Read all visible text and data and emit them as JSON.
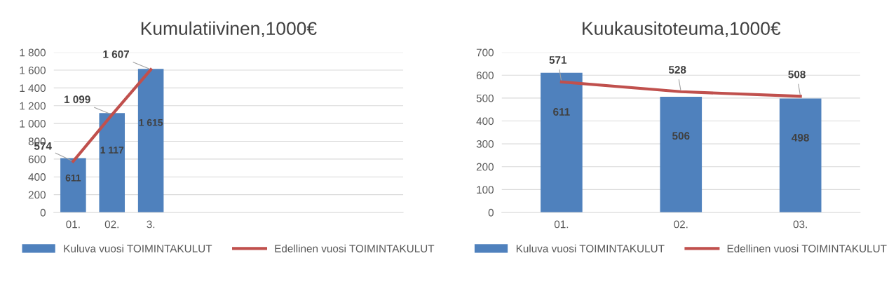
{
  "chart_data": [
    {
      "type": "bar",
      "title": "Kumulatiivinen,1000€",
      "categories": [
        "01.",
        "02.",
        "3.",
        null,
        null,
        null,
        null,
        null,
        null
      ],
      "series": [
        {
          "name": "Kuluva vuosi TOIMINTAKULUT",
          "color": "#4f81bd",
          "values": [
            611,
            1117,
            1615,
            null,
            null,
            null,
            null,
            null,
            null
          ],
          "value_labels": [
            "611",
            "1 117",
            "1 615",
            null,
            null,
            null,
            null,
            null,
            null
          ]
        },
        {
          "name": "Edellinen vuosi TOIMINTAKULUT",
          "type": "line",
          "color": "#c0504d",
          "values": [
            574,
            1099,
            1607,
            null,
            null,
            null,
            null,
            null,
            null
          ],
          "value_labels": [
            "574",
            "1 099",
            "1 607",
            null,
            null,
            null,
            null,
            null,
            null
          ]
        }
      ],
      "ylim": [
        0,
        1800
      ],
      "yticks": [
        0,
        200,
        400,
        600,
        800,
        {
          "value": 1000,
          "label": "1 000"
        },
        {
          "value": 1200,
          "label": "1 200"
        },
        {
          "value": 1400,
          "label": "1 400"
        },
        {
          "value": 1600,
          "label": "1 600"
        },
        {
          "value": 1800,
          "label": "1 800"
        }
      ],
      "grid": "y",
      "legend": "bottom",
      "marker": "none",
      "line_style": "solid"
    },
    {
      "type": "bar",
      "title": "Kuukausitoteuma,1000€",
      "categories": [
        "01.",
        "02.",
        "03."
      ],
      "series": [
        {
          "name": "Kuluva vuosi TOIMINTAKULUT",
          "color": "#4f81bd",
          "values": [
            611,
            506,
            498
          ],
          "value_labels": [
            "611",
            "506",
            "498"
          ]
        },
        {
          "name": "Edellinen vuosi TOIMINTAKULUT",
          "type": "line",
          "color": "#c0504d",
          "values": [
            571,
            528,
            508
          ],
          "value_labels": [
            "571",
            "528",
            "508"
          ]
        }
      ],
      "ylim": [
        0,
        700
      ],
      "yticks": [
        0,
        100,
        200,
        300,
        400,
        500,
        600,
        700
      ],
      "grid": "y",
      "legend": "bottom",
      "marker": "none",
      "line_style": "solid"
    }
  ]
}
